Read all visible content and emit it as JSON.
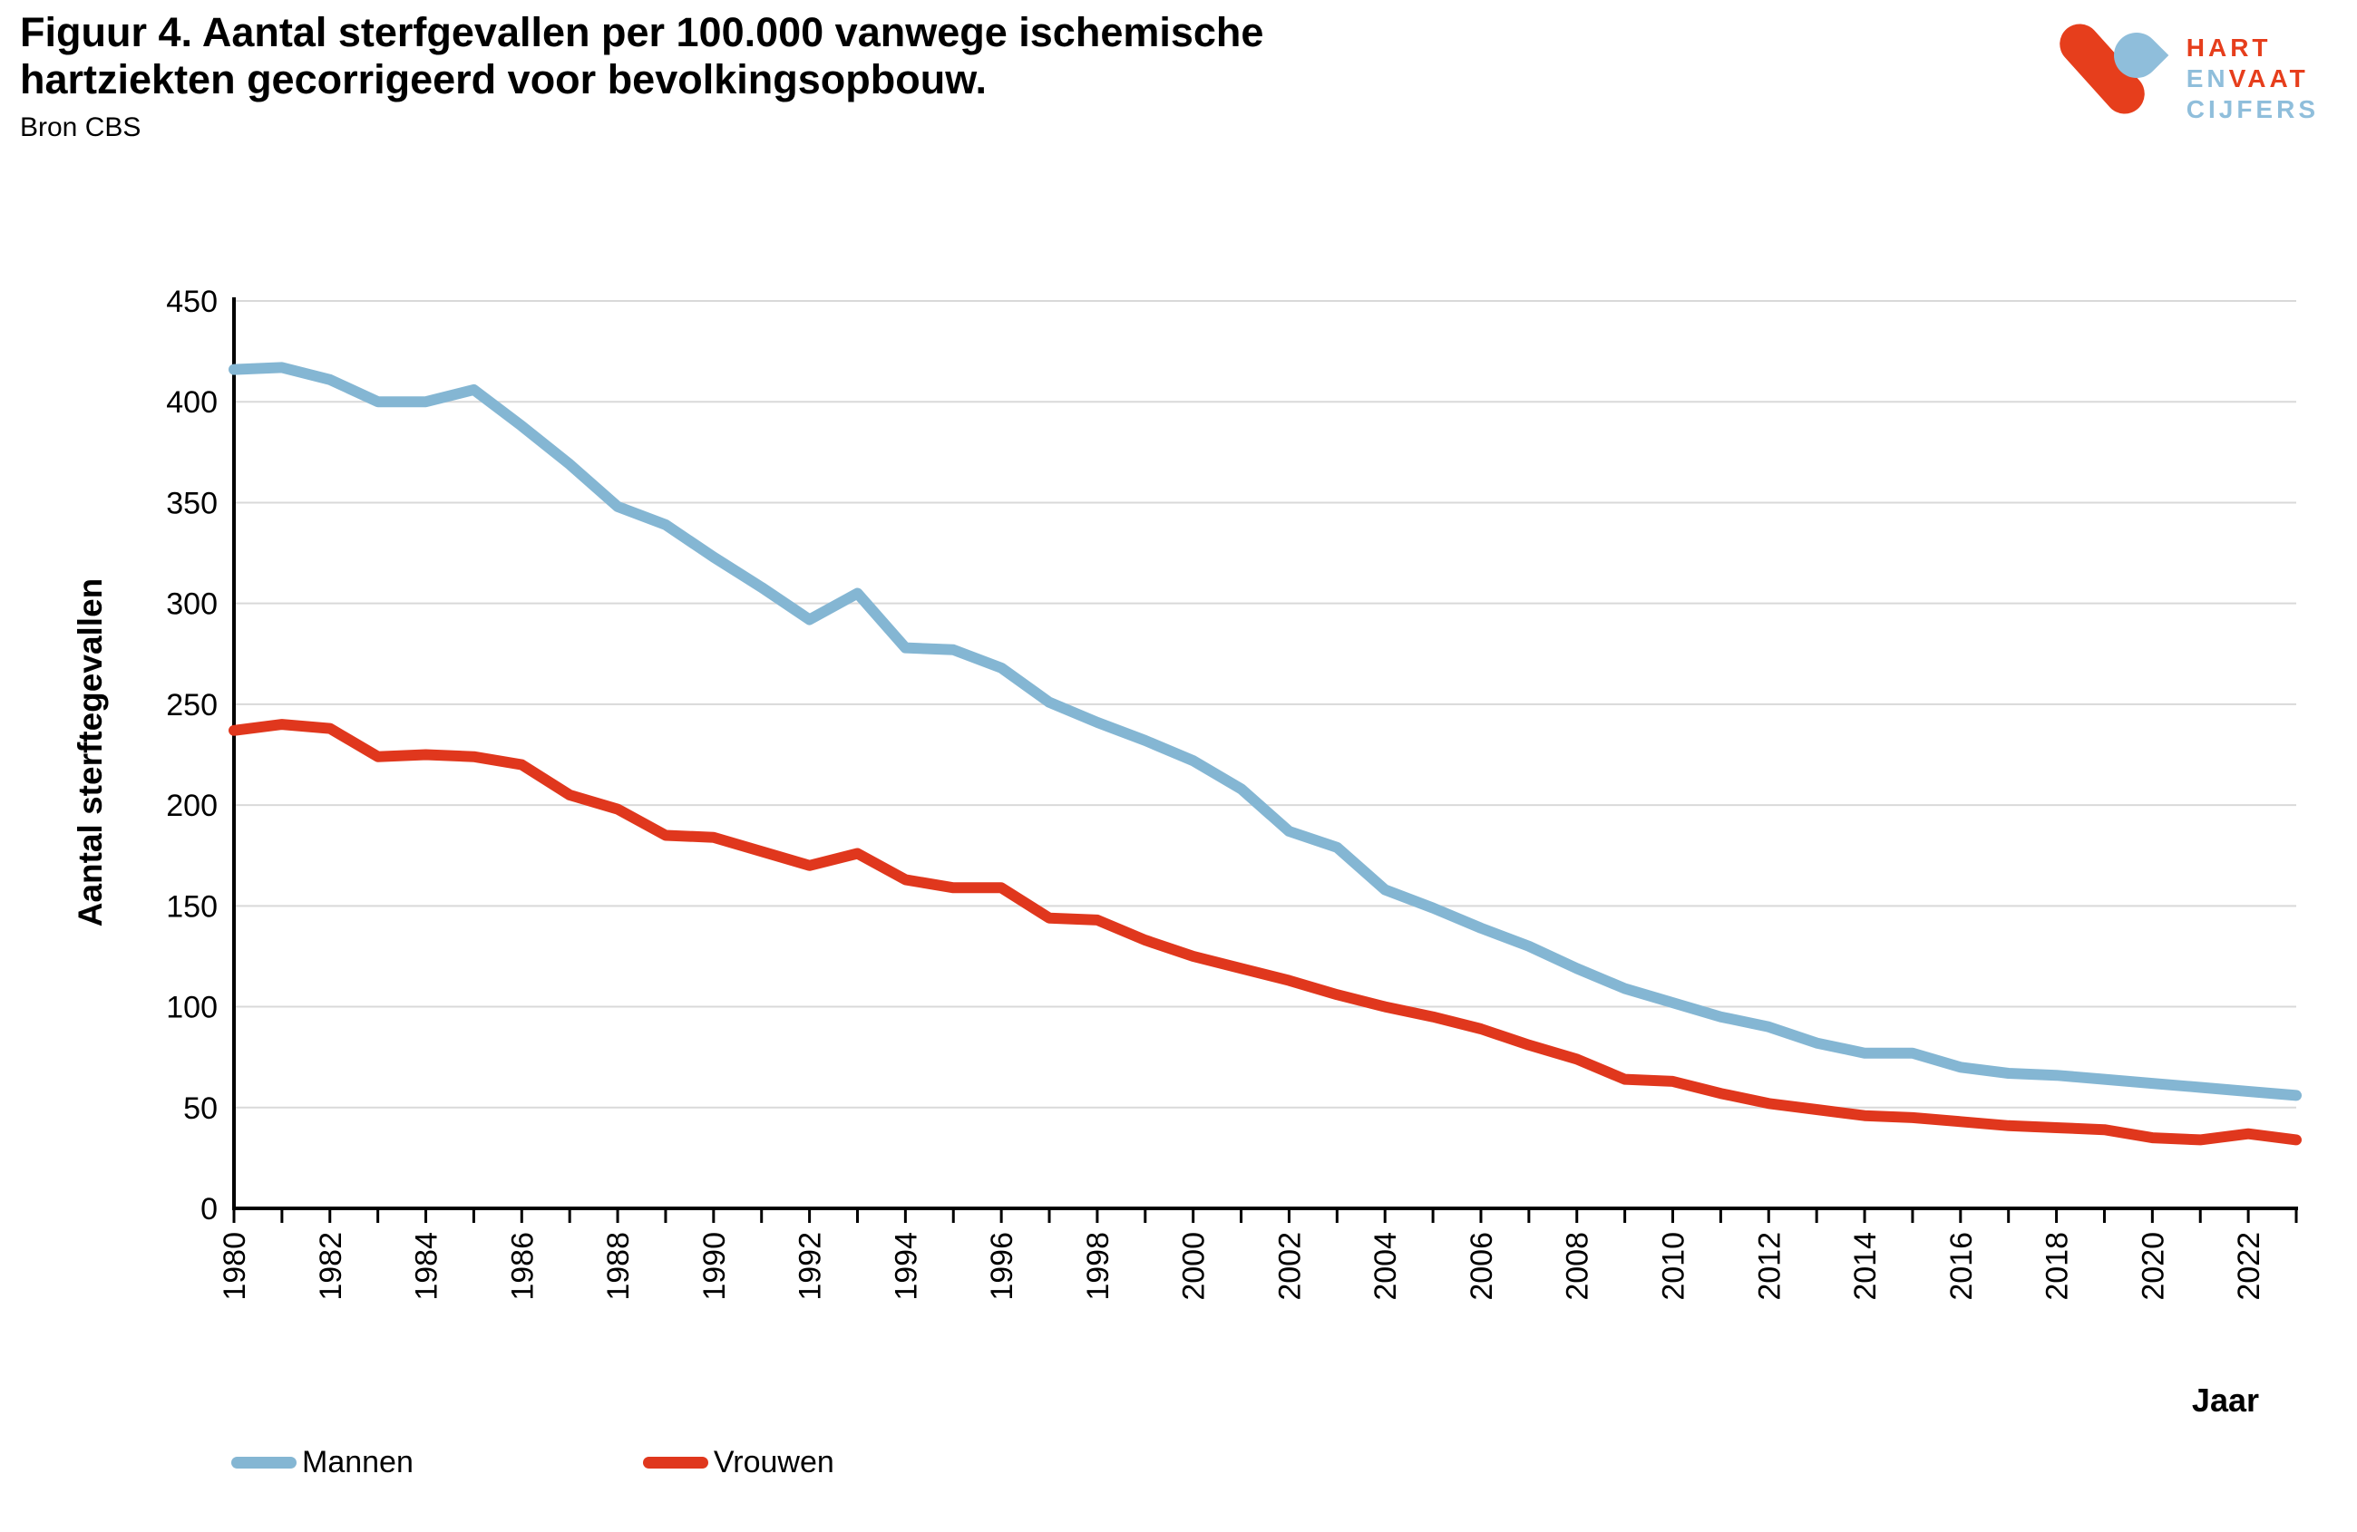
{
  "header": {
    "title_line1": "Figuur 4. Aantal sterfgevallen per 100.000 vanwege ischemische",
    "title_line2": "hartziekten gecorrigeerd voor bevolkingsopbouw.",
    "source": "Bron CBS"
  },
  "logo": {
    "line1": "HART",
    "line2_part1": "EN",
    "line2_part2": "VAAT",
    "line3": "CIJFERS",
    "red": "#E63E1C",
    "blue": "#8FBEDB"
  },
  "chart_data": {
    "type": "line",
    "title": "Figuur 4. Aantal sterfgevallen per 100.000 vanwege ischemische hartziekten gecorrigeerd voor bevolkingsopbouw.",
    "xlabel": "Jaar",
    "ylabel": "Aantal sterftegevallen",
    "ylim": [
      0,
      450
    ],
    "ytick_step": 50,
    "xtick_label_every": 2,
    "grid": true,
    "legend_position": "bottom-left",
    "grid_color": "#D9D9D9",
    "axis_color": "#000000",
    "x": [
      1980,
      1981,
      1982,
      1983,
      1984,
      1985,
      1986,
      1987,
      1988,
      1989,
      1990,
      1991,
      1992,
      1993,
      1994,
      1995,
      1996,
      1997,
      1998,
      1999,
      2000,
      2001,
      2002,
      2003,
      2004,
      2005,
      2006,
      2007,
      2008,
      2009,
      2010,
      2011,
      2012,
      2013,
      2014,
      2015,
      2016,
      2017,
      2018,
      2019,
      2020,
      2021,
      2022,
      2023
    ],
    "series": [
      {
        "name": "Mannen",
        "color": "#84B6D3",
        "values": [
          416,
          417,
          411,
          400,
          400,
          406,
          388,
          369,
          348,
          339,
          323,
          308,
          292,
          305,
          278,
          277,
          268,
          251,
          241,
          232,
          222,
          208,
          187,
          179,
          158,
          149,
          139,
          130,
          119,
          109,
          102,
          95,
          90,
          82,
          77,
          77,
          70,
          67,
          66,
          64,
          62,
          60,
          58,
          56
        ]
      },
      {
        "name": "Vrouwen",
        "color": "#E0371D",
        "values": [
          237,
          240,
          238,
          224,
          225,
          224,
          220,
          205,
          198,
          185,
          184,
          177,
          170,
          176,
          163,
          159,
          159,
          144,
          143,
          133,
          125,
          119,
          113,
          106,
          100,
          95,
          89,
          81,
          74,
          64,
          63,
          57,
          52,
          49,
          46,
          45,
          43,
          41,
          40,
          39,
          35,
          34,
          37,
          34
        ]
      }
    ]
  }
}
